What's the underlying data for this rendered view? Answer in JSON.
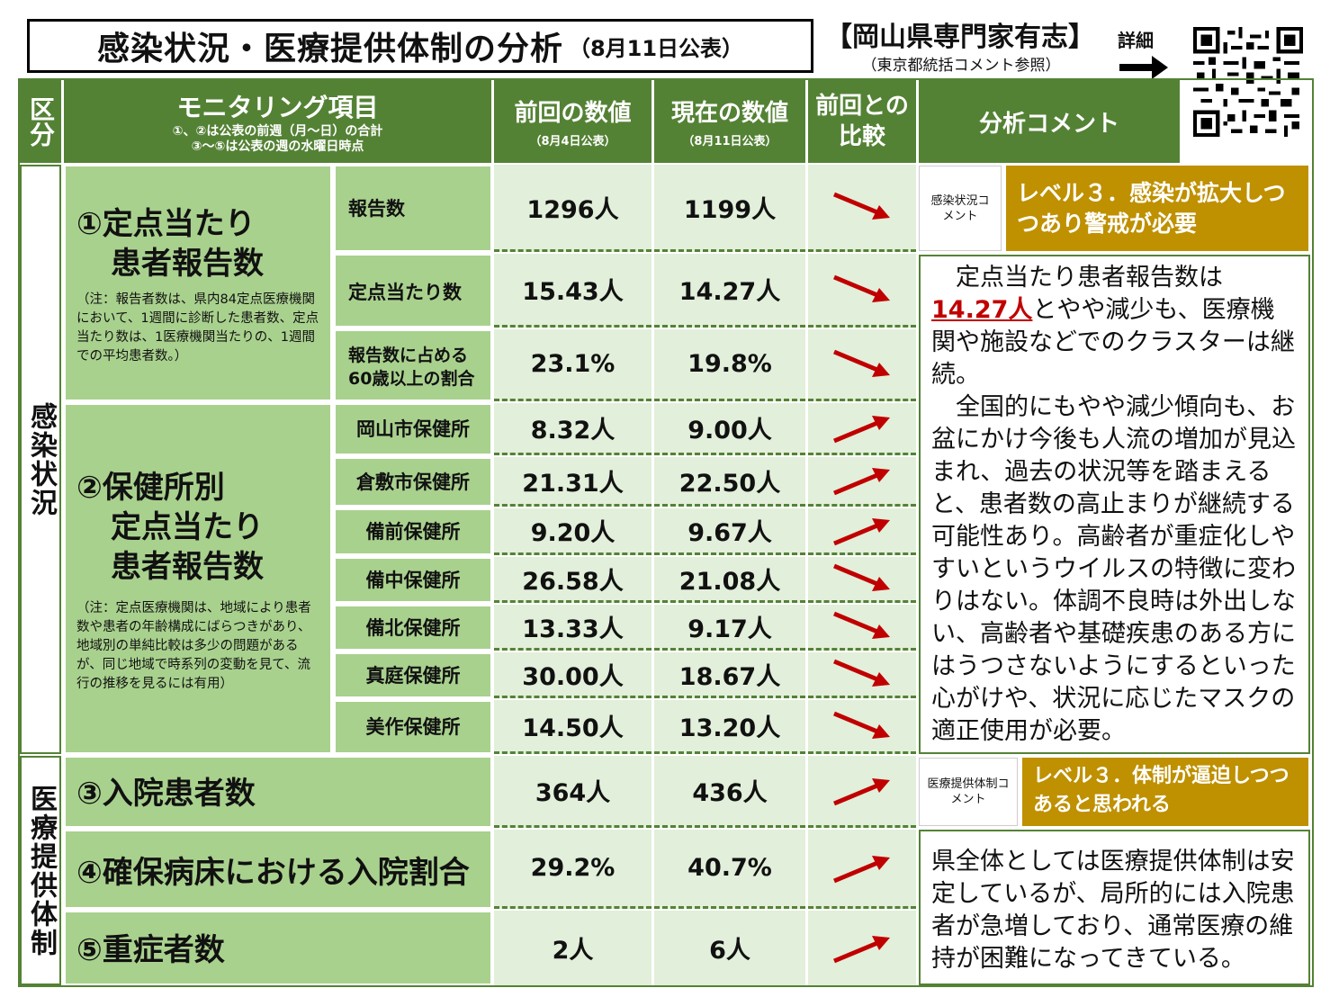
{
  "title": {
    "main": "感染状況・医療提供体制の分析",
    "sub": "（8月11日公表）"
  },
  "org": {
    "name": "【岡山県専門家有志】",
    "note": "（東京都統括コメント参照）",
    "detail_label": "詳細",
    "qr_icon": "qr-code"
  },
  "header": {
    "category": "区分",
    "item": "モニタリング項目",
    "item_note1": "①、②は公表の前週（月～日）の合計",
    "item_note2": "③～⑤は公表の週の水曜日時点",
    "prev": "前回の数値",
    "prev_note": "（8月4日公表）",
    "current": "現在の数値",
    "current_note": "（8月11日公表）",
    "compare": "前回との比較",
    "analysis": "分析コメント"
  },
  "categories": {
    "infection": "感染状況",
    "medical": "医療提供体制"
  },
  "item1": {
    "title_line1": "①定点当たり",
    "title_line2": "患者報告数",
    "note": "（注：報告者数は、県内84定点医療機関において、1週間に診断した患者数、定点当たり数は、1医療機関当たりの、1週間での平均患者数。）"
  },
  "item2": {
    "title_line1": "②保健所別",
    "title_line2": "定点当たり",
    "title_line3": "患者報告数",
    "note": "（注：定点医療機関は、地域により患者数や患者の年齢構成にばらつきがあり、地域別の単純比較は多少の問題があるが、同じ地域で時系列の変動を見て、流行の推移を見るには有用）"
  },
  "rows": [
    {
      "label": "報告数",
      "prev": "1296人",
      "current": "1199人",
      "trend": "down"
    },
    {
      "label": "定点当たり数",
      "prev": "15.43人",
      "current": "14.27人",
      "trend": "down"
    },
    {
      "label": "報告数に占める60歳以上の割合",
      "prev": "23.1%",
      "current": "19.8%",
      "trend": "down"
    },
    {
      "label": "岡山市保健所",
      "prev": "8.32人",
      "current": "9.00人",
      "trend": "up"
    },
    {
      "label": "倉敷市保健所",
      "prev": "21.31人",
      "current": "22.50人",
      "trend": "up"
    },
    {
      "label": "備前保健所",
      "prev": "9.20人",
      "current": "9.67人",
      "trend": "up"
    },
    {
      "label": "備中保健所",
      "prev": "26.58人",
      "current": "21.08人",
      "trend": "down"
    },
    {
      "label": "備北保健所",
      "prev": "13.33人",
      "current": "9.17人",
      "trend": "down"
    },
    {
      "label": "真庭保健所",
      "prev": "30.00人",
      "current": "18.67人",
      "trend": "down"
    },
    {
      "label": "美作保健所",
      "prev": "14.50人",
      "current": "13.20人",
      "trend": "down"
    }
  ],
  "medical_rows": [
    {
      "label": "③入院患者数",
      "prev": "364人",
      "current": "436人",
      "trend": "up"
    },
    {
      "label": "④確保病床における入院割合",
      "prev": "29.2%",
      "current": "40.7%",
      "trend": "up"
    },
    {
      "label": "⑤重症者数",
      "prev": "2人",
      "current": "6人",
      "trend": "up"
    }
  ],
  "infection_comment": {
    "label": "感染状況コメント",
    "level": "レベル３．感染が拡大しつつあり警戒が必要",
    "text_before": "定点当たり患者報告数は",
    "highlight": "14.27人",
    "text_after": "とやや減少も、医療機関や施設などでのクラスターは継続。",
    "text2": "全国的にもやや減少傾向も、お盆にかけ今後も人流の増加が見込まれ、過去の状況等を踏まえると、患者数の高止まりが継続する可能性あり。高齢者が重症化しやすいというウイルスの特徴に変わりはない。体調不良時は外出しない、高齢者や基礎疾患のある方にはうつさないようにするといった心がけや、状況に応じたマスクの適正使用が必要。"
  },
  "medical_comment": {
    "label": "医療提供体制コメント",
    "level": "レベル３．体制が逼迫しつつあると思われる",
    "text": "県全体としては医療提供体制は安定しているが、局所的には入院患者が急増しており、通常医療の維持が困難になってきている。"
  },
  "colors": {
    "header_green": "#548235",
    "item_green": "#a9d18e",
    "value_green": "#e2efda",
    "level_gold": "#bf9000",
    "arrow_red": "#c00000"
  }
}
